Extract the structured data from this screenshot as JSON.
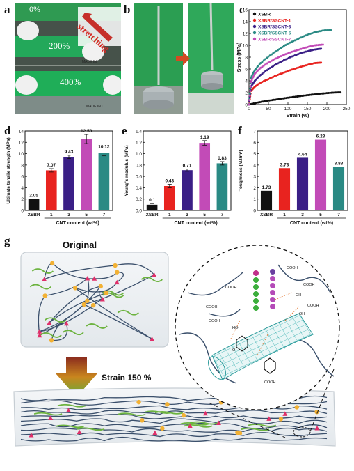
{
  "panel_labels": {
    "a": "a",
    "b": "b",
    "c": "c",
    "d": "d",
    "e": "e",
    "f": "f",
    "g": "g"
  },
  "photo_a": {
    "arrow_text": "stretching",
    "l1": "0%",
    "l2": "200%",
    "l3": "400%",
    "ruler_text": "MADE IN",
    "ruler_text2": "MADE IN C"
  },
  "colors": {
    "XSBR": "#111111",
    "SSCNT-1": "#e8231f",
    "SSCNT-3": "#3a1f86",
    "SSCNT-5": "#c24bb7",
    "SSCNT-7": "#2a8a84"
  },
  "chart_data": [
    {
      "id": "c",
      "type": "scatter",
      "xlabel": "Strain (%)",
      "ylabel": "Stress (MPa)",
      "xlim": [
        0,
        250
      ],
      "ylim": [
        0,
        16
      ],
      "xticks": [
        "0",
        "50",
        "100",
        "150",
        "200",
        "250"
      ],
      "yticks": [
        "0",
        "2",
        "4",
        "6",
        "8",
        "10",
        "12",
        "14",
        "16"
      ],
      "legend": "top-left",
      "series": [
        {
          "name": "XSBR",
          "color": "#111111",
          "x": [
            0,
            20,
            40,
            60,
            80,
            100,
            120,
            140,
            160,
            180,
            200,
            220,
            235
          ],
          "y": [
            0,
            0.3,
            0.55,
            0.75,
            0.95,
            1.15,
            1.32,
            1.5,
            1.65,
            1.8,
            1.92,
            2.02,
            2.05
          ]
        },
        {
          "name": "XSBR/SSCNT-1",
          "color": "#e8231f",
          "x": [
            0,
            5,
            15,
            30,
            50,
            70,
            90,
            110,
            130,
            150,
            170,
            185
          ],
          "y": [
            0,
            2.3,
            3.0,
            3.7,
            4.3,
            4.9,
            5.4,
            5.9,
            6.3,
            6.7,
            7.0,
            7.07
          ]
        },
        {
          "name": "XSBR/SSCNT-3",
          "color": "#3a1f86",
          "x": [
            0,
            5,
            15,
            30,
            50,
            70,
            90,
            110,
            130,
            150,
            170,
            185
          ],
          "y": [
            0,
            3.0,
            4.0,
            5.0,
            6.0,
            6.8,
            7.5,
            8.1,
            8.6,
            9.0,
            9.3,
            9.43
          ]
        },
        {
          "name": "XSBR/SSCNT-5",
          "color": "#2a8a84",
          "x": [
            0,
            5,
            15,
            30,
            50,
            70,
            90,
            110,
            130,
            150,
            170,
            190,
            210
          ],
          "y": [
            0,
            4.5,
            5.8,
            7.0,
            8.1,
            9.0,
            9.9,
            10.6,
            11.2,
            11.8,
            12.2,
            12.5,
            12.58
          ]
        },
        {
          "name": "XSBR/SSCNT-7",
          "color": "#c24bb7",
          "x": [
            0,
            5,
            15,
            30,
            50,
            70,
            90,
            110,
            130,
            150,
            170,
            190
          ],
          "y": [
            0,
            3.8,
            5.2,
            6.2,
            7.1,
            7.8,
            8.4,
            8.9,
            9.3,
            9.7,
            10.0,
            10.12
          ]
        }
      ]
    },
    {
      "id": "d",
      "type": "bar",
      "ylabel": "Ultimate tensile strength (MPa)",
      "xlabel": "CNT content (wt%)",
      "ylim": [
        0,
        14
      ],
      "yticks": [
        "0",
        "2",
        "4",
        "6",
        "8",
        "10",
        "12",
        "14"
      ],
      "categories": [
        "XSBR",
        "1",
        "3",
        "5",
        "7"
      ],
      "values": [
        2.05,
        7.07,
        9.43,
        12.58,
        10.12
      ],
      "labels": [
        "2.05",
        "7.07",
        "9.43",
        "12.58",
        "10.12"
      ],
      "errors": [
        0,
        0.3,
        0.3,
        0.8,
        0.5
      ]
    },
    {
      "id": "e",
      "type": "bar",
      "ylabel": "Young's modulus (MPa)",
      "xlabel": "CNT content (wt%)",
      "ylim": [
        0,
        1.4
      ],
      "yticks": [
        "0.0",
        "0.2",
        "0.4",
        "0.6",
        "0.8",
        "1.0",
        "1.2",
        "1.4"
      ],
      "categories": [
        "XSBR",
        "1",
        "3",
        "5",
        "7"
      ],
      "values": [
        0.1,
        0.43,
        0.71,
        1.19,
        0.83
      ],
      "labels": [
        "0.1",
        "0.43",
        "0.71",
        "1.19",
        "0.83"
      ],
      "errors": [
        0.02,
        0.03,
        0.02,
        0.04,
        0.03
      ]
    },
    {
      "id": "f",
      "type": "bar",
      "ylabel": "Toughness (MJ/m³)",
      "xlabel": "CNT content (wt%)",
      "ylim": [
        0,
        7
      ],
      "yticks": [
        "0",
        "1",
        "2",
        "3",
        "4",
        "5",
        "6",
        "7"
      ],
      "categories": [
        "XSBR",
        "1",
        "3",
        "5",
        "7"
      ],
      "values": [
        1.73,
        3.73,
        4.64,
        6.23,
        3.83
      ],
      "labels": [
        "1.73",
        "3.73",
        "4.64",
        "6.23",
        "3.83"
      ],
      "errors": [
        0,
        0,
        0,
        0,
        0
      ]
    }
  ],
  "schematic": {
    "original_label": "Original",
    "strain_label": "Strain 150 %",
    "cooh": "COOH",
    "oh": "OH",
    "ho": "HO-",
    "ho2": "HO"
  }
}
